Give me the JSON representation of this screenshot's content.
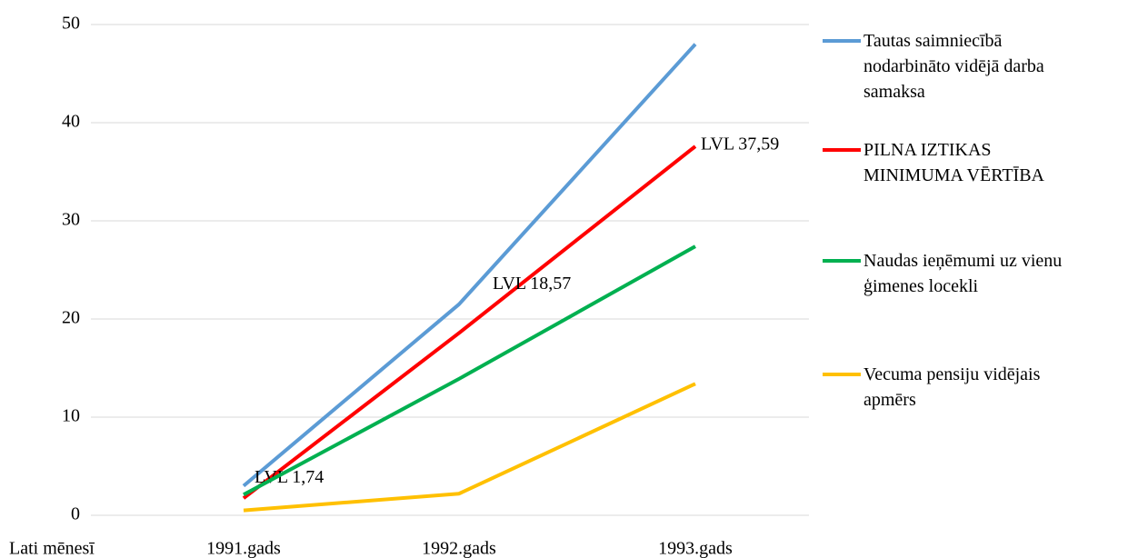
{
  "chart_data": {
    "type": "line",
    "y_label": "Lati mēnesī",
    "categories": [
      "1991.gads",
      "1992.gads",
      "1993.gads"
    ],
    "series": [
      {
        "name": "Tautas saimniecībā nodarbināto vidējā darba samaksa",
        "color": "#5b9bd5",
        "values": [
          3,
          21.5,
          48
        ]
      },
      {
        "name": "PILNA IZTIKAS MINIMUMA VĒRTĪBA",
        "color": "#ff0000",
        "values": [
          1.74,
          18.57,
          37.59
        ],
        "value_labels": [
          "LVL 1,74",
          "LVL 18,57",
          "LVL 37,59"
        ]
      },
      {
        "name": "Naudas ieņēmumi uz vienu ģimenes locekli",
        "color": "#00b050",
        "values": [
          2.1,
          13.9,
          27.4
        ]
      },
      {
        "name": "Vecuma pensiju vidējais apmērs",
        "color": "#ffc000",
        "values": [
          0.5,
          2.2,
          13.4
        ]
      }
    ],
    "ylim": [
      0,
      50
    ],
    "yticks": [
      0,
      10,
      20,
      30,
      40,
      50
    ],
    "grid": true,
    "legend": "right"
  }
}
